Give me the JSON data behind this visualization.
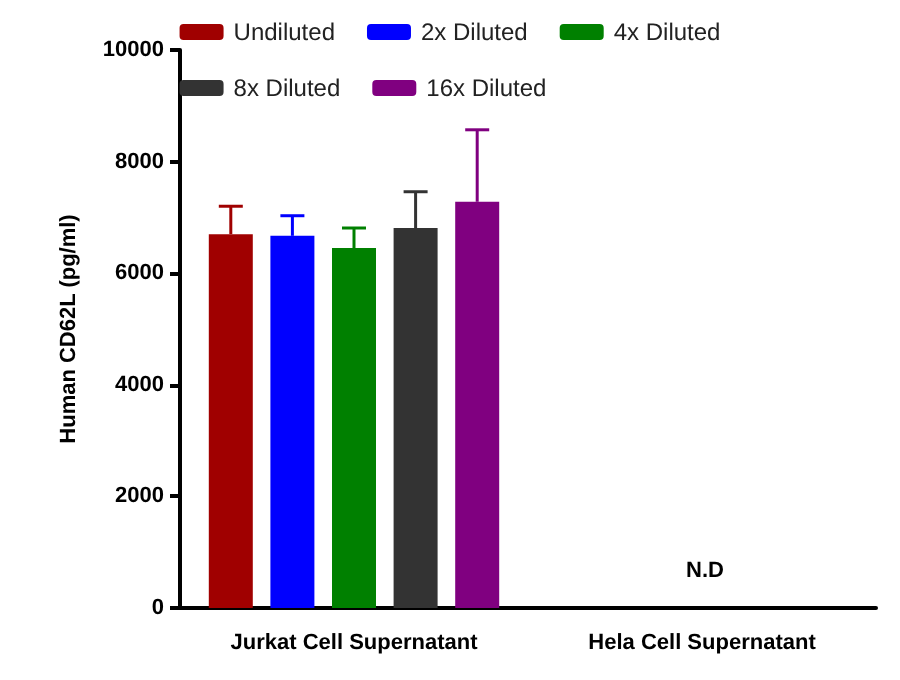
{
  "chart_data": {
    "type": "bar",
    "ylabel": "Human CD62L (pg/ml)",
    "categories": [
      "Jurkat Cell Supernatant",
      "Hela Cell Supernatant"
    ],
    "series": [
      {
        "name": "Undiluted",
        "color": "#a00000",
        "values": [
          6700,
          null
        ],
        "errors": [
          [
            6700,
            7200
          ],
          null
        ]
      },
      {
        "name": "2x Diluted",
        "color": "#0000ff",
        "values": [
          6670,
          null
        ],
        "errors": [
          [
            6670,
            7030
          ],
          null
        ]
      },
      {
        "name": "4x Diluted",
        "color": "#008000",
        "values": [
          6450,
          null
        ],
        "errors": [
          [
            6450,
            6810
          ],
          null
        ]
      },
      {
        "name": "8x Diluted",
        "color": "#333333",
        "values": [
          6810,
          null
        ],
        "errors": [
          [
            6810,
            7460
          ],
          null
        ]
      },
      {
        "name": "16x Diluted",
        "color": "#800080",
        "values": [
          7280,
          null
        ],
        "errors": [
          [
            7280,
            8570
          ],
          null
        ]
      }
    ],
    "annotations": [
      "N.D"
    ],
    "ylim": [
      0,
      10000
    ],
    "yticks": [
      0,
      2000,
      4000,
      6000,
      8000,
      10000
    ],
    "grid": false,
    "legend": "top"
  }
}
